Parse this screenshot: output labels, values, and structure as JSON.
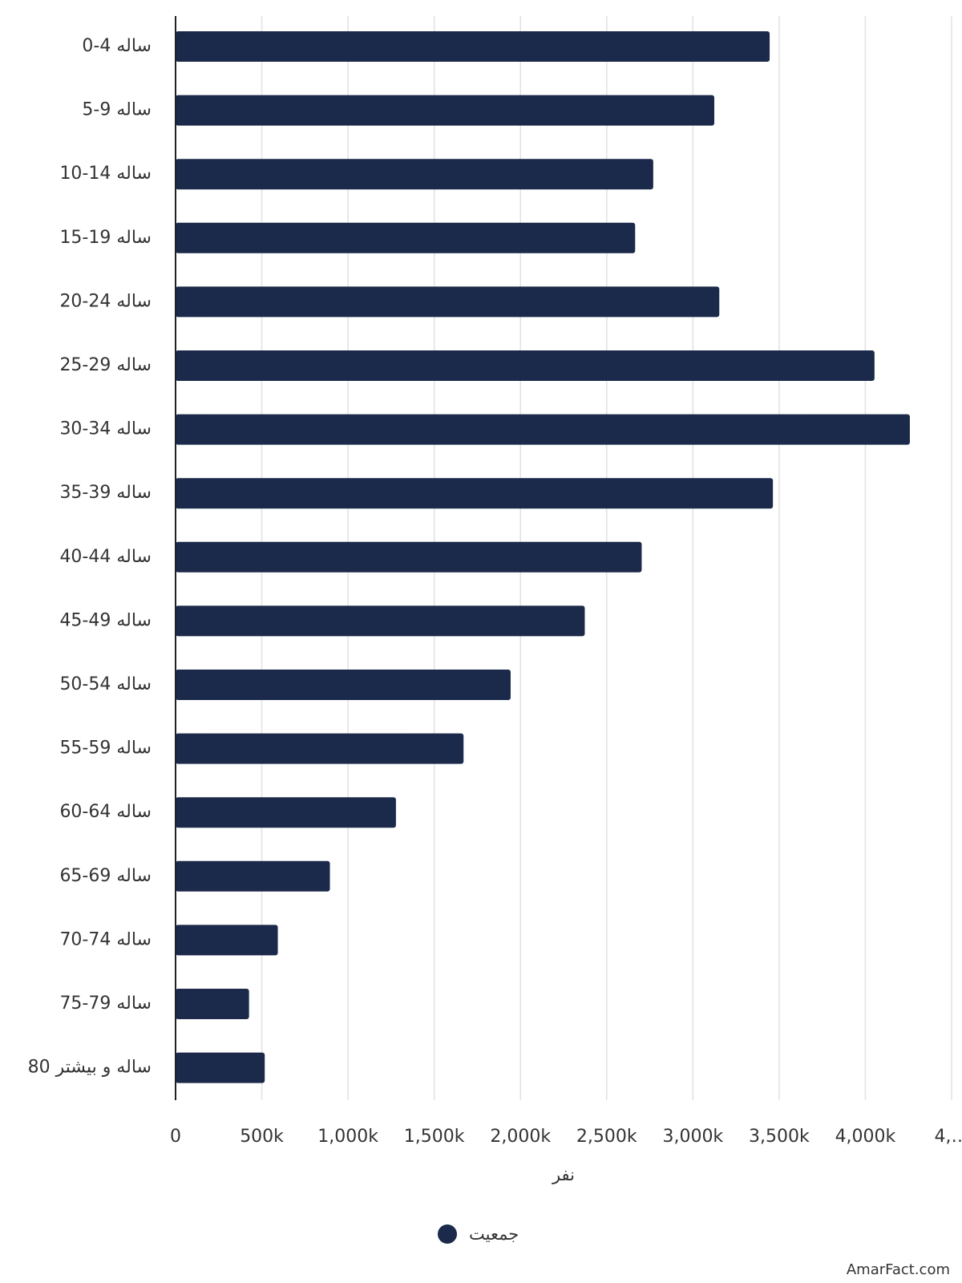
{
  "chart_data": {
    "type": "bar",
    "orientation": "horizontal",
    "categories": [
      "0-4 ساله",
      "5-9 ساله",
      "10-14 ساله",
      "15-19 ساله",
      "20-24 ساله",
      "25-29 ساله",
      "30-34 ساله",
      "35-39 ساله",
      "40-44 ساله",
      "45-49 ساله",
      "50-54 ساله",
      "55-59 ساله",
      "60-64 ساله",
      "65-69 ساله",
      "70-74 ساله",
      "75-79 ساله",
      "80 ساله و بیشتر"
    ],
    "series": [
      {
        "name": "جمعیت",
        "color": "#1b2a4a",
        "values": [
          3445000,
          3124000,
          2770000,
          2665000,
          3153000,
          4053000,
          4258000,
          3464000,
          2703000,
          2373000,
          1943000,
          1670000,
          1278000,
          895000,
          593000,
          426000,
          517000
        ]
      }
    ],
    "xlabel": "نفر",
    "xlim": [
      0,
      4500000
    ],
    "xticks": [
      0,
      {
        "value": 500000,
        "label": "500k"
      },
      {
        "value": 1000000,
        "label": "1,000k"
      },
      {
        "value": 1500000,
        "label": "1,500k"
      },
      {
        "value": 2000000,
        "label": "2,000k"
      },
      {
        "value": 2500000,
        "label": "2,500k"
      },
      {
        "value": 3000000,
        "label": "3,000k"
      },
      {
        "value": 3500000,
        "label": "3,500k"
      },
      {
        "value": 4000000,
        "label": "4,000k"
      },
      {
        "value": 4500000,
        "label": "4,…"
      }
    ],
    "grid": true,
    "legend": "bottom",
    "watermark": "AmarFact.com"
  }
}
